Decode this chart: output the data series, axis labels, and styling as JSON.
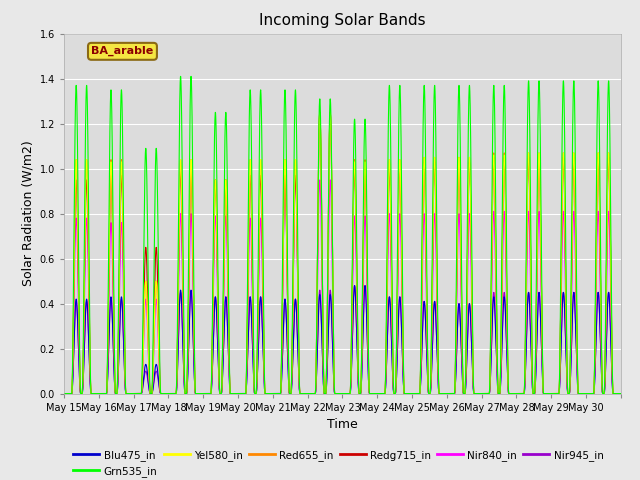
{
  "title": "Incoming Solar Bands",
  "xlabel": "Time",
  "ylabel": "Solar Radiation (W/m2)",
  "site_label": "BA_arable",
  "ylim": [
    0,
    1.6
  ],
  "fig_facecolor": "#e8e8e8",
  "ax_facecolor": "#dcdcdc",
  "legend_entries": [
    "Blu475_in",
    "Grn535_in",
    "Yel580_in",
    "Red655_in",
    "Redg715_in",
    "Nir840_in",
    "Nir945_in"
  ],
  "line_colors": {
    "Blu475_in": "#0000cc",
    "Grn535_in": "#00ff00",
    "Yel580_in": "#ffff00",
    "Red655_in": "#ff8800",
    "Redg715_in": "#cc0000",
    "Nir840_in": "#ff00ff",
    "Nir945_in": "#9900cc"
  },
  "n_days": 16,
  "start_day": 15,
  "peaks_green": [
    1.37,
    1.35,
    1.09,
    1.41,
    1.25,
    1.35,
    1.35,
    1.31,
    1.22,
    1.37,
    1.37,
    1.37,
    1.37,
    1.39,
    1.39,
    1.39
  ],
  "peaks_blue": [
    0.42,
    0.43,
    0.13,
    0.46,
    0.43,
    0.43,
    0.42,
    0.44,
    0.48,
    0.43,
    0.41,
    0.4,
    0.43,
    0.45,
    0.45,
    0.45
  ],
  "peaks_yellow": [
    1.04,
    1.03,
    0.5,
    1.04,
    0.95,
    1.04,
    1.04,
    1.25,
    1.03,
    1.04,
    1.05,
    1.05,
    1.06,
    1.07,
    1.07,
    1.07
  ],
  "peaks_red655": [
    1.04,
    1.04,
    0.5,
    1.04,
    0.95,
    1.04,
    1.04,
    1.25,
    1.04,
    1.04,
    1.05,
    1.05,
    1.07,
    1.07,
    1.07,
    1.07
  ],
  "peaks_redg715": [
    0.95,
    0.97,
    0.65,
    0.99,
    0.95,
    0.97,
    0.97,
    1.25,
    1.0,
    1.0,
    1.03,
    1.03,
    1.05,
    1.05,
    1.05,
    1.05
  ],
  "peaks_nir840": [
    0.78,
    0.76,
    0.42,
    0.8,
    0.79,
    0.78,
    0.97,
    0.95,
    0.79,
    0.8,
    0.8,
    0.8,
    0.81,
    0.81,
    0.81,
    0.81
  ],
  "peaks_nir945": [
    0.41,
    0.42,
    0.1,
    0.45,
    0.43,
    0.43,
    0.42,
    0.46,
    0.48,
    0.43,
    0.41,
    0.4,
    0.45,
    0.45,
    0.45,
    0.45
  ],
  "tick_labels": [
    "May 15",
    "May 16",
    "May 17",
    "May 18",
    "May 19",
    "May 20",
    "May 21",
    "May 22",
    "May 23",
    "May 24",
    "May 25",
    "May 26",
    "May 27",
    "May 28",
    "May 29",
    "May 30",
    ""
  ]
}
